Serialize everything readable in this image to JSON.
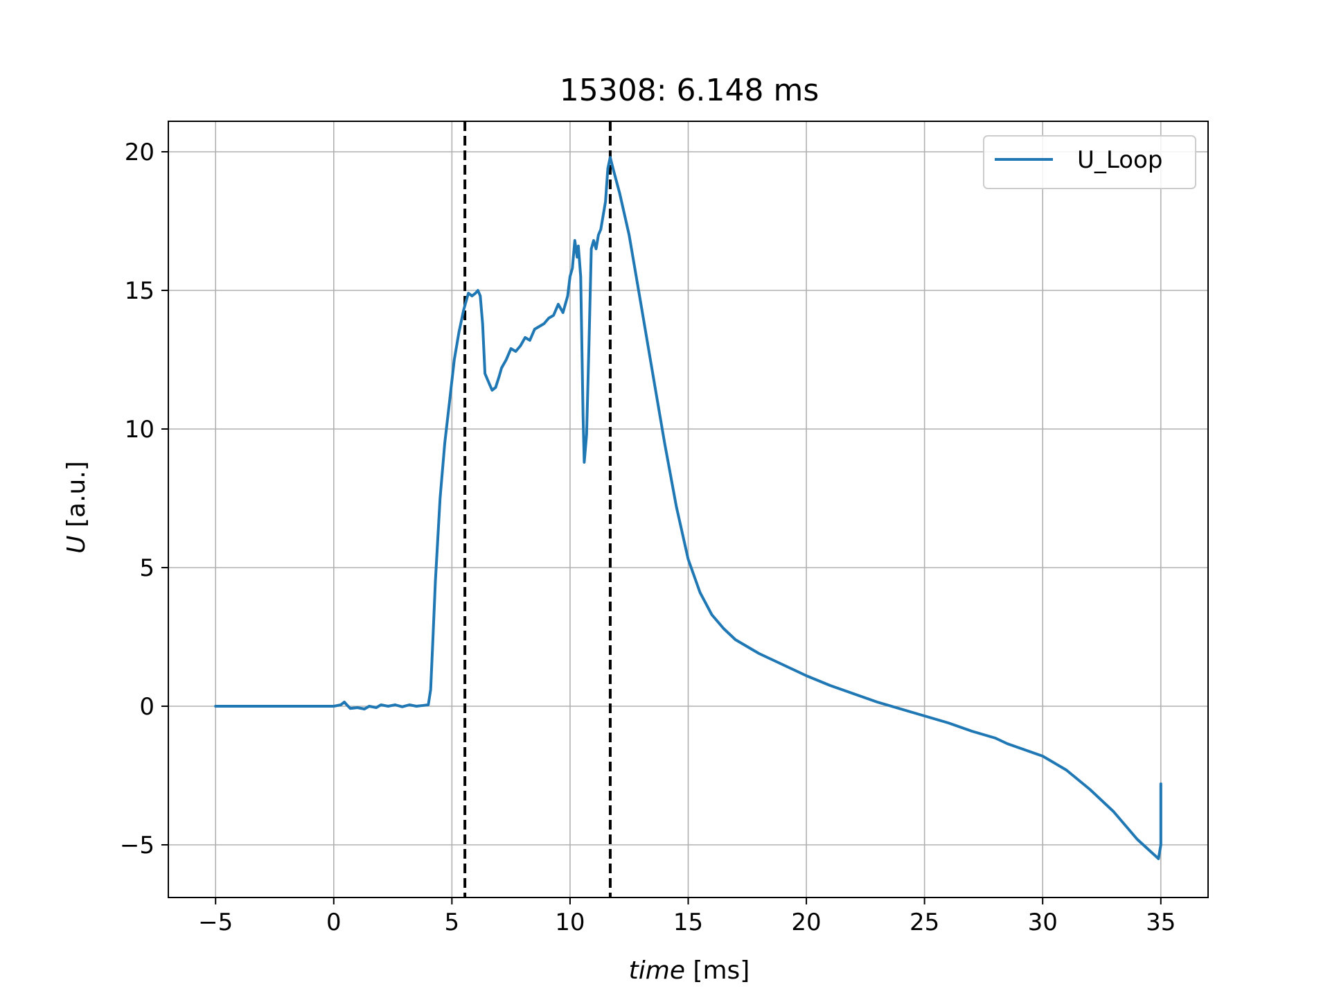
{
  "chart_data": {
    "type": "line",
    "title": "15308: 6.148 ms",
    "xlabel_var": "time",
    "xlabel_unit": " [ms]",
    "ylabel_var": "U",
    "ylabel_unit": " [a.u.]",
    "xlim": [
      -7,
      37
    ],
    "ylim": [
      -6.9,
      21.1
    ],
    "xticks": [
      -5,
      0,
      5,
      10,
      15,
      20,
      25,
      30,
      35
    ],
    "xtick_labels": [
      "−5",
      "0",
      "5",
      "10",
      "15",
      "20",
      "25",
      "30",
      "35"
    ],
    "yticks": [
      -5,
      0,
      5,
      10,
      15,
      20
    ],
    "ytick_labels": [
      "−5",
      "0",
      "5",
      "10",
      "15",
      "20"
    ],
    "grid": true,
    "legend_position": "top-right",
    "vlines": [
      5.55,
      11.7
    ],
    "series": [
      {
        "name": "U_Loop",
        "color": "#1f77b4",
        "x": [
          -5,
          0,
          0.3,
          0.45,
          0.55,
          0.7,
          1.0,
          1.3,
          1.5,
          1.8,
          2.0,
          2.3,
          2.6,
          2.9,
          3.2,
          3.5,
          3.8,
          4.0,
          4.1,
          4.2,
          4.3,
          4.5,
          4.7,
          4.9,
          5.1,
          5.3,
          5.5,
          5.6,
          5.7,
          5.85,
          6.0,
          6.1,
          6.2,
          6.3,
          6.4,
          6.5,
          6.6,
          6.7,
          6.85,
          7.0,
          7.1,
          7.3,
          7.5,
          7.7,
          7.9,
          8.1,
          8.3,
          8.5,
          8.7,
          8.9,
          9.1,
          9.3,
          9.5,
          9.7,
          9.9,
          10.0,
          10.1,
          10.2,
          10.3,
          10.35,
          10.45,
          10.55,
          10.6,
          10.7,
          10.8,
          10.9,
          11.0,
          11.1,
          11.2,
          11.3,
          11.4,
          11.5,
          11.6,
          11.7,
          11.85,
          12.1,
          12.5,
          13.0,
          13.5,
          14.0,
          14.5,
          15.0,
          15.5,
          16.0,
          16.5,
          17.0,
          18.0,
          19.0,
          20.0,
          21.0,
          22.0,
          23.0,
          24.0,
          25.0,
          26.0,
          27.0,
          28.0,
          28.5,
          29.0,
          30.0,
          31.0,
          32.0,
          33.0,
          34.0,
          34.9,
          35.0,
          35.0
        ],
        "y": [
          0,
          0,
          0.05,
          0.15,
          0.05,
          -0.08,
          -0.05,
          -0.1,
          0.0,
          -0.05,
          0.05,
          0.0,
          0.05,
          -0.02,
          0.05,
          0.0,
          0.03,
          0.05,
          0.6,
          2.5,
          4.5,
          7.5,
          9.5,
          11.0,
          12.5,
          13.5,
          14.3,
          14.6,
          14.9,
          14.8,
          14.9,
          15.0,
          14.8,
          13.8,
          12.0,
          11.8,
          11.6,
          11.4,
          11.5,
          11.9,
          12.2,
          12.5,
          12.9,
          12.8,
          13.0,
          13.3,
          13.2,
          13.6,
          13.7,
          13.8,
          14.0,
          14.1,
          14.5,
          14.2,
          14.8,
          15.5,
          15.8,
          16.8,
          16.2,
          16.6,
          15.5,
          10.5,
          8.8,
          9.8,
          13.0,
          16.5,
          16.8,
          16.5,
          17.0,
          17.2,
          17.7,
          18.2,
          19.4,
          19.8,
          19.3,
          18.5,
          17.0,
          14.5,
          12.0,
          9.5,
          7.2,
          5.3,
          4.1,
          3.3,
          2.8,
          2.4,
          1.9,
          1.5,
          1.1,
          0.75,
          0.45,
          0.15,
          -0.1,
          -0.35,
          -0.6,
          -0.9,
          -1.15,
          -1.35,
          -1.5,
          -1.8,
          -2.3,
          -3.0,
          -3.8,
          -4.8,
          -5.5,
          -5.0,
          -2.8
        ]
      }
    ]
  }
}
